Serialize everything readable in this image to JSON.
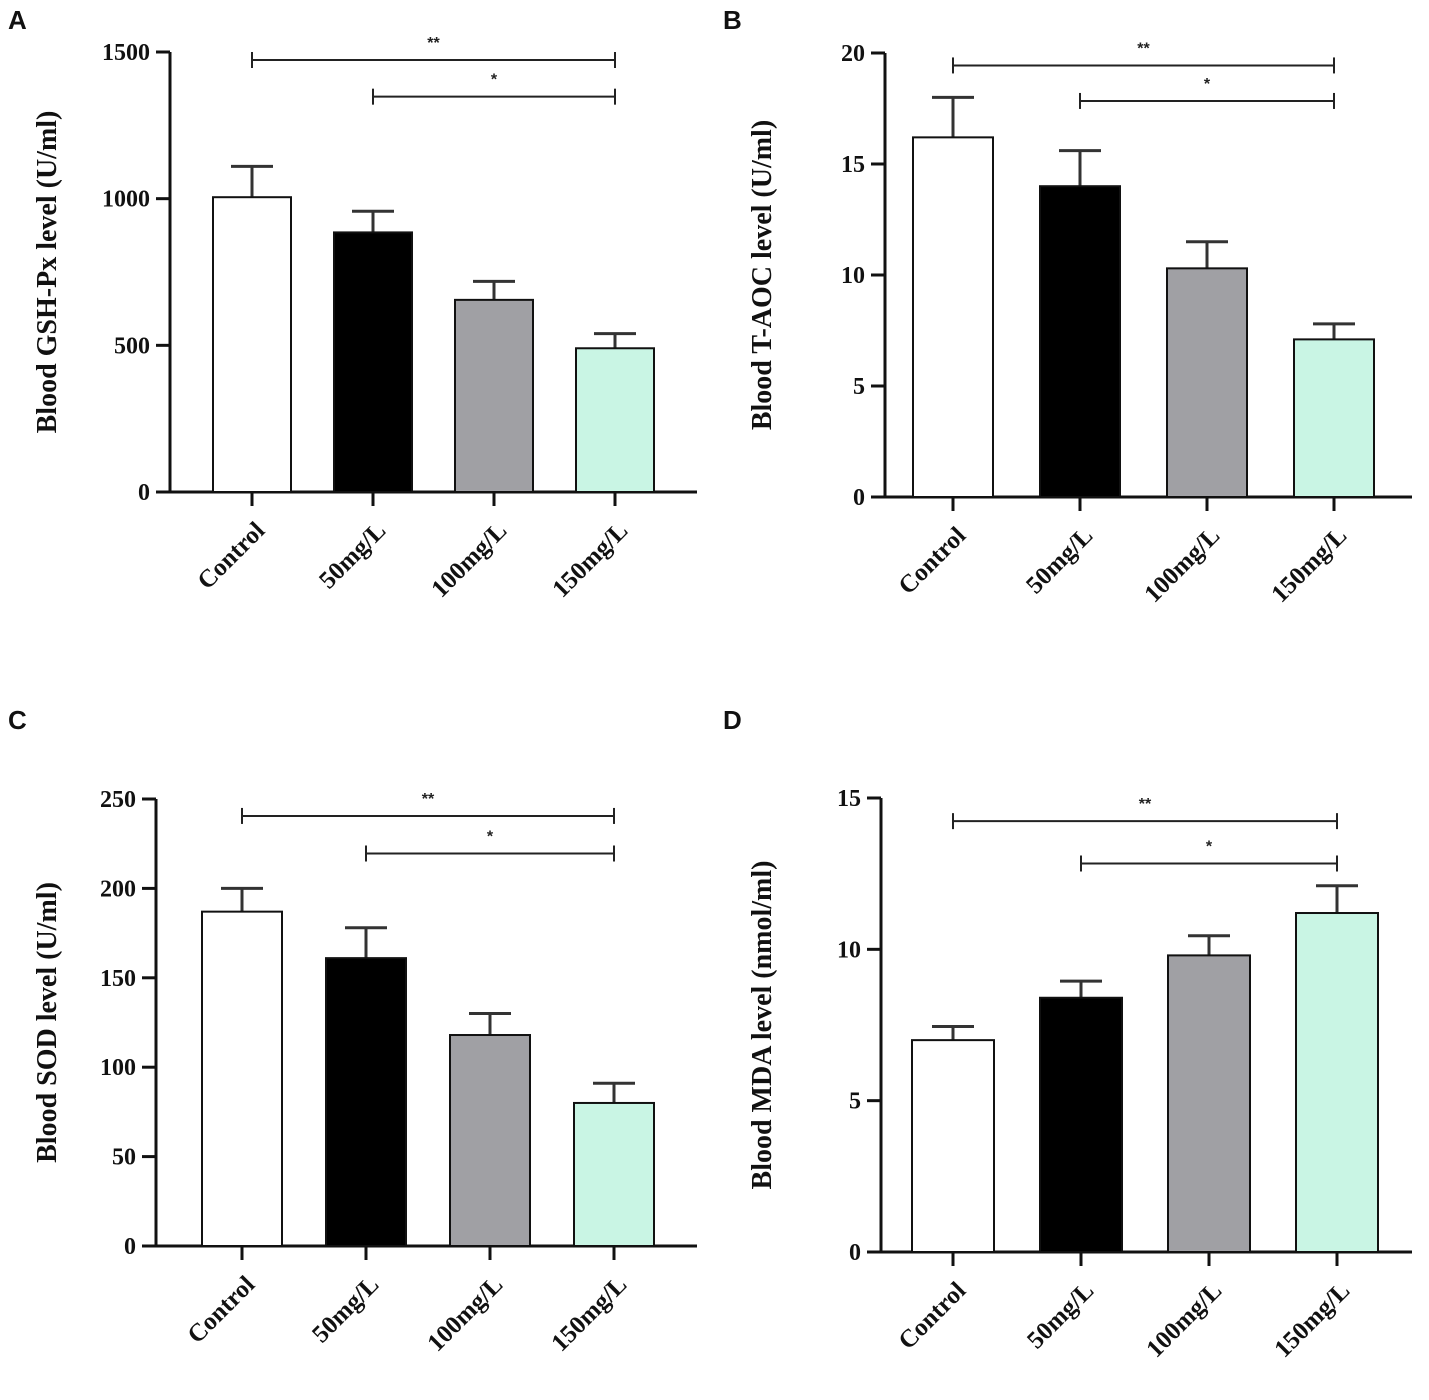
{
  "chart_data": [
    {
      "type": "bar",
      "panel_letter": "A",
      "categories": [
        "Control",
        "50mg/L",
        "100mg/L",
        "150mg/L"
      ],
      "values": [
        1005,
        885,
        655,
        490
      ],
      "errors": [
        105,
        72,
        63,
        50
      ],
      "colors": [
        "#ffffff",
        "#000000",
        "#a0a0a4",
        "#c9f5e4"
      ],
      "ylabel": "Blood GSH-Px level (U/ml)",
      "ylim": [
        0,
        1500
      ],
      "yticks": [
        0,
        500,
        1000,
        1500
      ],
      "ytick_labels": [
        "0",
        "500",
        "1000",
        "1500"
      ],
      "significance": [
        {
          "from": 0,
          "to": 3,
          "label": "**",
          "level": 1500
        },
        {
          "from": 1,
          "to": 3,
          "label": "*",
          "level": 1375
        }
      ]
    },
    {
      "type": "bar",
      "panel_letter": "B",
      "categories": [
        "Control",
        "50mg/L",
        "100mg/L",
        "150mg/L"
      ],
      "values": [
        16.2,
        14.0,
        10.3,
        7.1
      ],
      "errors": [
        1.8,
        1.6,
        1.2,
        0.7
      ],
      "colors": [
        "#ffffff",
        "#000000",
        "#a0a0a4",
        "#c9f5e4"
      ],
      "ylabel": "Blood T-AOC level (U/ml)",
      "ylim": [
        0,
        20
      ],
      "yticks": [
        0,
        5,
        10,
        15,
        20
      ],
      "ytick_labels": [
        "0",
        "5",
        "10",
        "15",
        "20"
      ],
      "significance": [
        {
          "from": 0,
          "to": 3,
          "label": "**",
          "level": 19.8
        },
        {
          "from": 1,
          "to": 3,
          "label": "*",
          "level": 18.2
        }
      ]
    },
    {
      "type": "bar",
      "panel_letter": "C",
      "categories": [
        "Control",
        "50mg/L",
        "100mg/L",
        "150mg/L"
      ],
      "values": [
        187,
        161,
        118,
        80
      ],
      "errors": [
        13,
        17,
        12,
        11
      ],
      "colors": [
        "#ffffff",
        "#000000",
        "#a0a0a4",
        "#c9f5e4"
      ],
      "ylabel": "Blood SOD level (U/ml)",
      "ylim": [
        0,
        250
      ],
      "yticks": [
        0,
        50,
        100,
        150,
        200,
        250
      ],
      "ytick_labels": [
        "0",
        "50",
        "100",
        "150",
        "200",
        "250"
      ],
      "significance": [
        {
          "from": 0,
          "to": 3,
          "label": "**",
          "level": 245
        },
        {
          "from": 1,
          "to": 3,
          "label": "*",
          "level": 224
        }
      ]
    },
    {
      "type": "bar",
      "panel_letter": "D",
      "categories": [
        "Control",
        "50mg/L",
        "100mg/L",
        "150mg/L"
      ],
      "values": [
        7.0,
        8.4,
        9.8,
        11.2
      ],
      "errors": [
        0.45,
        0.55,
        0.65,
        0.9
      ],
      "colors": [
        "#ffffff",
        "#000000",
        "#a0a0a4",
        "#c9f5e4"
      ],
      "ylabel": "Blood MDA level (nmol/ml)",
      "ylim": [
        0,
        15
      ],
      "yticks": [
        0,
        5,
        10,
        15
      ],
      "ytick_labels": [
        "0",
        "5",
        "10",
        "15"
      ],
      "significance": [
        {
          "from": 0,
          "to": 3,
          "label": "**",
          "level": 14.5
        },
        {
          "from": 1,
          "to": 3,
          "label": "*",
          "level": 13.1
        }
      ]
    }
  ]
}
